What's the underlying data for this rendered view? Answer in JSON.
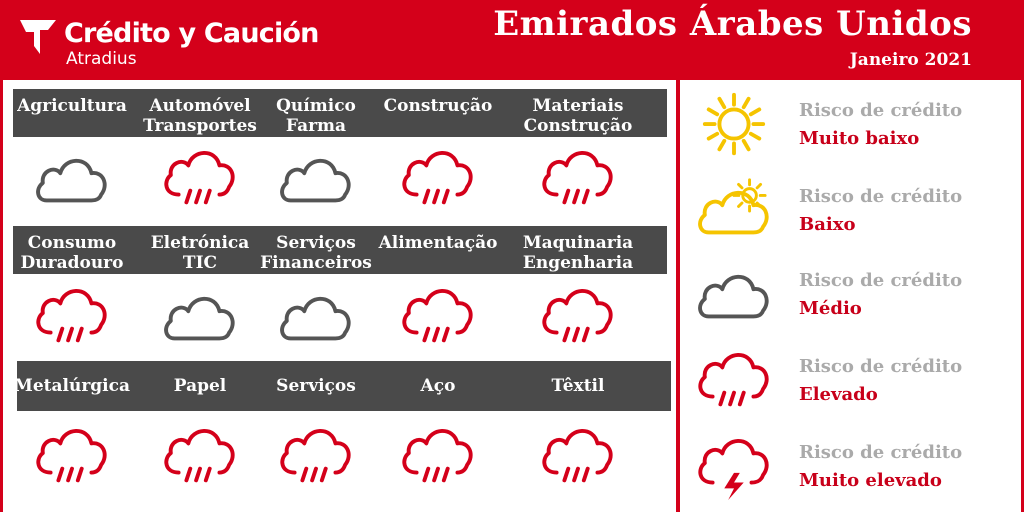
{
  "header": {
    "brand_name": "Crédito y Caución",
    "brand_sub": "Atradius",
    "country": "Emirados Árabes Unidos",
    "date": "Janeiro 2021"
  },
  "colors": {
    "brand_red": "#d4001a",
    "band_gray": "#4a4a4a",
    "medium_gray": "#555555",
    "sun_yellow": "#f5c400",
    "legend_gray": "#aaaaaa"
  },
  "sectors": [
    {
      "line1": "Agricultura",
      "line2": "",
      "risk": "medio",
      "icon": "cloud-icon"
    },
    {
      "line1": "Automóvel",
      "line2": "Transportes",
      "risk": "elevado",
      "icon": "rain-cloud-icon"
    },
    {
      "line1": "Químico",
      "line2": "Farma",
      "risk": "medio",
      "icon": "cloud-icon"
    },
    {
      "line1": "Construção",
      "line2": "",
      "risk": "elevado",
      "icon": "rain-cloud-icon"
    },
    {
      "line1": "Materiais",
      "line2": "Construção",
      "risk": "elevado",
      "icon": "rain-cloud-icon"
    },
    {
      "line1": "Consumo",
      "line2": "Duradouro",
      "risk": "elevado",
      "icon": "rain-cloud-icon"
    },
    {
      "line1": "Eletrónica",
      "line2": "TIC",
      "risk": "medio",
      "icon": "cloud-icon"
    },
    {
      "line1": "Serviços",
      "line2": "Financeiros",
      "risk": "medio",
      "icon": "cloud-icon"
    },
    {
      "line1": "Alimentação",
      "line2": "",
      "risk": "elevado",
      "icon": "rain-cloud-icon"
    },
    {
      "line1": "Maquinaria",
      "line2": "Engenharia",
      "risk": "elevado",
      "icon": "rain-cloud-icon"
    },
    {
      "line1": "Metalúrgica",
      "line2": "",
      "risk": "elevado",
      "icon": "rain-cloud-icon"
    },
    {
      "line1": "Papel",
      "line2": "",
      "risk": "elevado",
      "icon": "rain-cloud-icon"
    },
    {
      "line1": "Serviços",
      "line2": "",
      "risk": "elevado",
      "icon": "rain-cloud-icon"
    },
    {
      "line1": "Aço",
      "line2": "",
      "risk": "elevado",
      "icon": "rain-cloud-icon"
    },
    {
      "line1": "Têxtil",
      "line2": "",
      "risk": "elevado",
      "icon": "rain-cloud-icon"
    }
  ],
  "legend": [
    {
      "label": "Risco de crédito",
      "level": "Muito baixo",
      "icon": "sun-icon"
    },
    {
      "label": "Risco de crédito",
      "level": "Baixo",
      "icon": "sun-cloud-icon"
    },
    {
      "label": "Risco de crédito",
      "level": "Médio",
      "icon": "cloud-icon"
    },
    {
      "label": "Risco de crédito",
      "level": "Elevado",
      "icon": "rain-cloud-icon"
    },
    {
      "label": "Risco de crédito",
      "level": "Muito elevado",
      "icon": "storm-cloud-icon"
    }
  ]
}
